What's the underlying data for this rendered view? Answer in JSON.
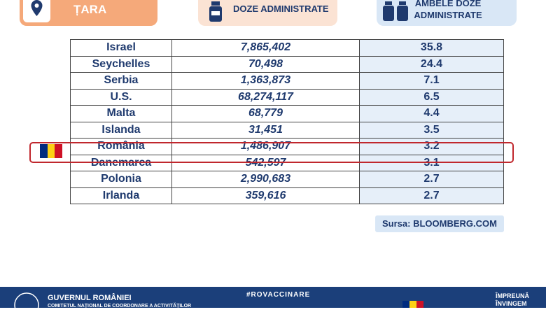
{
  "header": {
    "country": "ȚARA",
    "doses": "DOZE ADMINISTRATE",
    "both_doses": [
      "AMBELE DOZE",
      "ADMINISTRATE"
    ]
  },
  "table": {
    "rows": [
      [
        "Israel",
        "7,865,402",
        "35.8"
      ],
      [
        "Seychelles",
        "70,498",
        "24.4"
      ],
      [
        "Serbia",
        "1,363,873",
        "7.1"
      ],
      [
        "U.S.",
        "68,274,117",
        "6.5"
      ],
      [
        "Malta",
        "68,779",
        "4.4"
      ],
      [
        "Islanda",
        "31,451",
        "3.5"
      ],
      [
        "România",
        "1,486,907",
        "3.2"
      ],
      [
        "Danemarca",
        "542,597",
        "3.1"
      ],
      [
        "Polonia",
        "2,990,683",
        "2.7"
      ],
      [
        "Irlanda",
        "359,616",
        "2.7"
      ]
    ],
    "highlight_row": 6
  },
  "source": "Sursa: BLOOMBERG.COM",
  "footer": {
    "org": "GUVERNUL ROMÂNIEI",
    "committee": "COMITETUL NAȚIONAL DE COORDONARE A ACTIVITĂȚILOR",
    "hashtag": "#ROVACCINARE",
    "slogan": [
      "ÎMPREUNĂ",
      "ÎNVINGEM"
    ]
  }
}
